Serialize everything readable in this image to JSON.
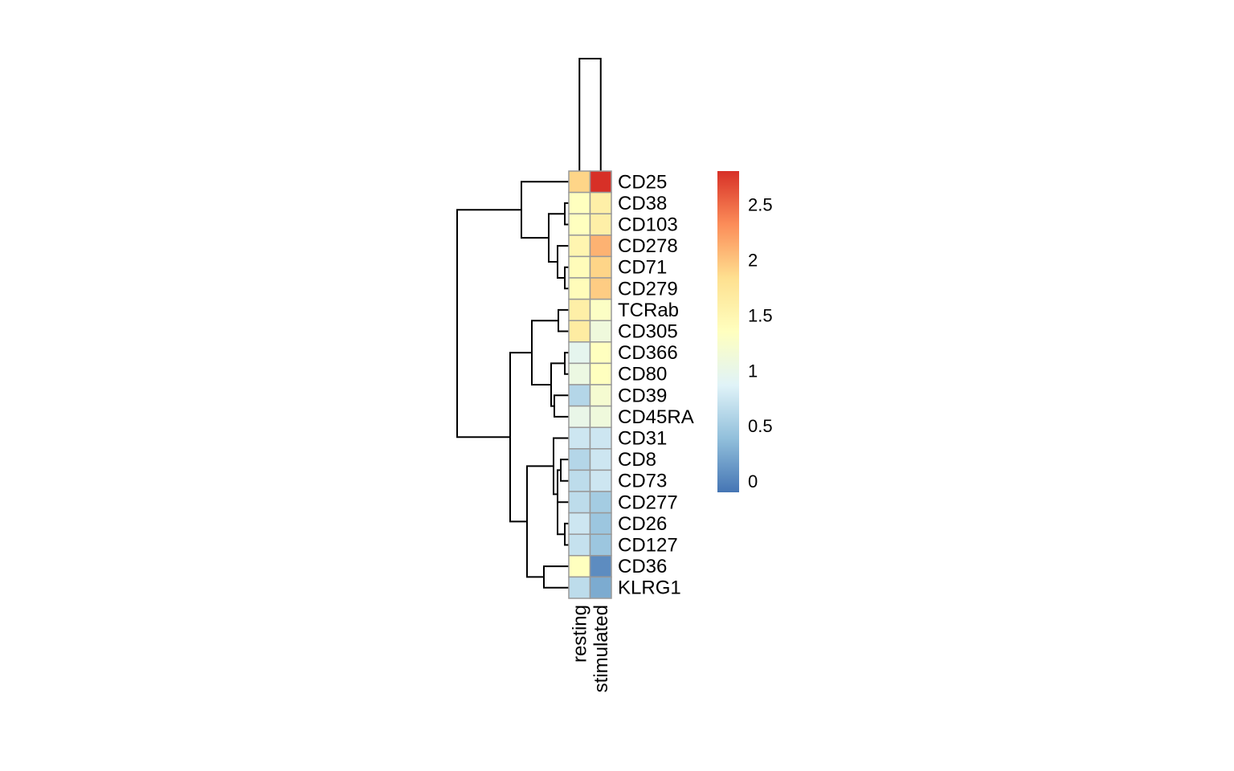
{
  "chart_data": {
    "type": "heatmap",
    "title": "",
    "columns": [
      "resting",
      "stimulated"
    ],
    "rows": [
      "CD25",
      "CD38",
      "CD103",
      "CD278",
      "CD71",
      "CD279",
      "TCRab",
      "CD305",
      "CD366",
      "CD80",
      "CD39",
      "CD45RA",
      "CD31",
      "CD8",
      "CD73",
      "CD277",
      "CD26",
      "CD127",
      "CD36",
      "KLRG1"
    ],
    "values": [
      [
        1.9,
        2.8
      ],
      [
        1.35,
        1.6
      ],
      [
        1.35,
        1.6
      ],
      [
        1.5,
        2.1
      ],
      [
        1.4,
        1.9
      ],
      [
        1.4,
        1.95
      ],
      [
        1.6,
        1.3
      ],
      [
        1.65,
        1.1
      ],
      [
        0.95,
        1.35
      ],
      [
        1.05,
        1.35
      ],
      [
        0.6,
        1.2
      ],
      [
        1.0,
        1.1
      ],
      [
        0.75,
        0.75
      ],
      [
        0.6,
        0.75
      ],
      [
        0.65,
        0.75
      ],
      [
        0.65,
        0.5
      ],
      [
        0.75,
        0.45
      ],
      [
        0.7,
        0.45
      ],
      [
        1.35,
        0.05
      ],
      [
        0.65,
        0.25
      ]
    ],
    "color_scale": {
      "min": -0.1,
      "max": 2.8,
      "ticks": [
        "0",
        "0.5",
        "1",
        "1.5",
        "2",
        "2.5"
      ],
      "tick_values": [
        0,
        0.5,
        1,
        1.5,
        2,
        2.5
      ],
      "colors": [
        "#4575B4",
        "#91BFDB",
        "#E0F3F8",
        "#FFFFBF",
        "#FEE090",
        "#FC8D59",
        "#D73027"
      ]
    },
    "column_dendrogram": true,
    "row_dendrogram": true,
    "legend_position": "right",
    "cell_border_color": "#999999"
  }
}
